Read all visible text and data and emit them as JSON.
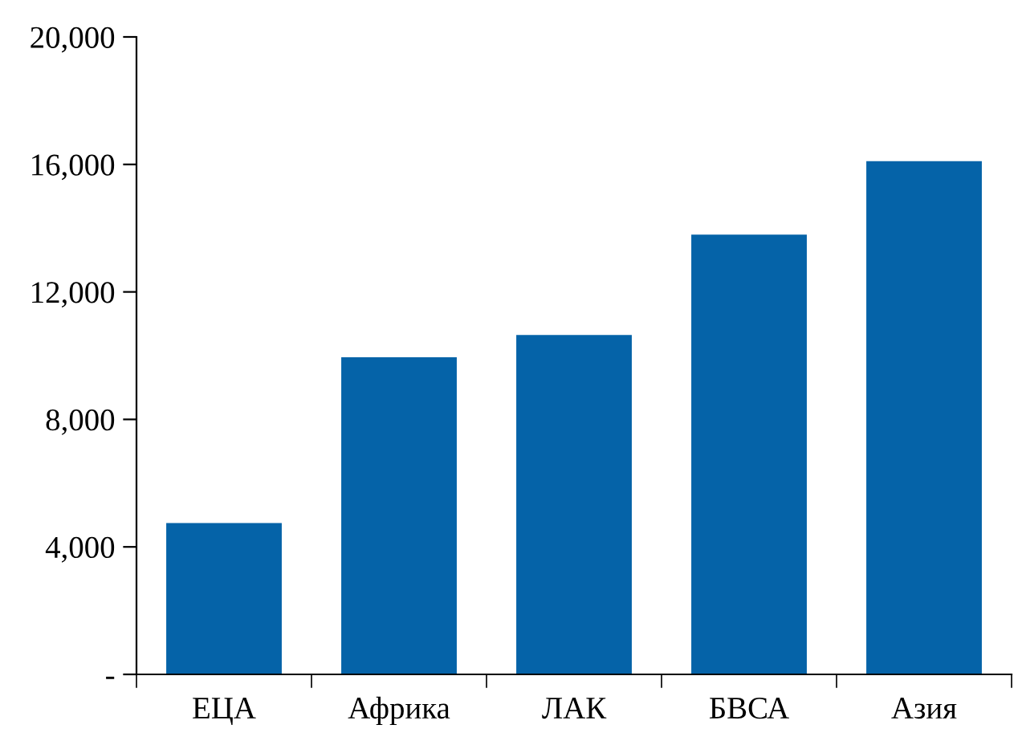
{
  "chart_data": {
    "type": "bar",
    "categories": [
      "ЕЦА",
      "Африка",
      "ЛАК",
      "БВСА",
      "Азия"
    ],
    "values": [
      4750,
      9950,
      10650,
      13800,
      16100
    ],
    "color": "#0563a8",
    "ylim": [
      0,
      20000
    ],
    "yticks": [
      {
        "value": 0,
        "label": "-"
      },
      {
        "value": 4000,
        "label": "4,000"
      },
      {
        "value": 8000,
        "label": "8,000"
      },
      {
        "value": 12000,
        "label": "12,000"
      },
      {
        "value": 16000,
        "label": "16,000"
      },
      {
        "value": 20000,
        "label": "20,000"
      }
    ],
    "grid": false,
    "legend": false
  }
}
